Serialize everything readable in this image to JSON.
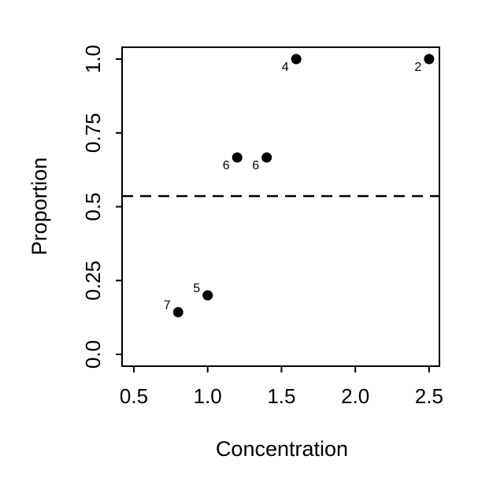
{
  "chart_data": {
    "type": "scatter",
    "x_label": "Concentration",
    "y_label": "Proportion",
    "x": [
      0.8,
      1.0,
      1.2,
      1.4,
      1.6,
      2.5
    ],
    "values": [
      0.1429,
      0.2,
      0.6667,
      0.6667,
      1.0,
      1.0
    ],
    "point_labels": [
      "7",
      "5",
      "6",
      "6",
      "4",
      "2"
    ],
    "color": "#000000",
    "reference_line": 0.536,
    "xlim": [
      0.42,
      2.57
    ],
    "ylim": [
      -0.04,
      1.04
    ],
    "xticks": [
      0.5,
      {
        "value": 1,
        "label": "1.0"
      },
      1.5,
      {
        "value": 2,
        "label": "2.0"
      },
      2.5
    ],
    "yticks": [
      {
        "value": 0,
        "label": "0.0"
      },
      0.25,
      0.5,
      0.75,
      {
        "value": 1,
        "label": "1.0"
      }
    ],
    "grid": false
  }
}
